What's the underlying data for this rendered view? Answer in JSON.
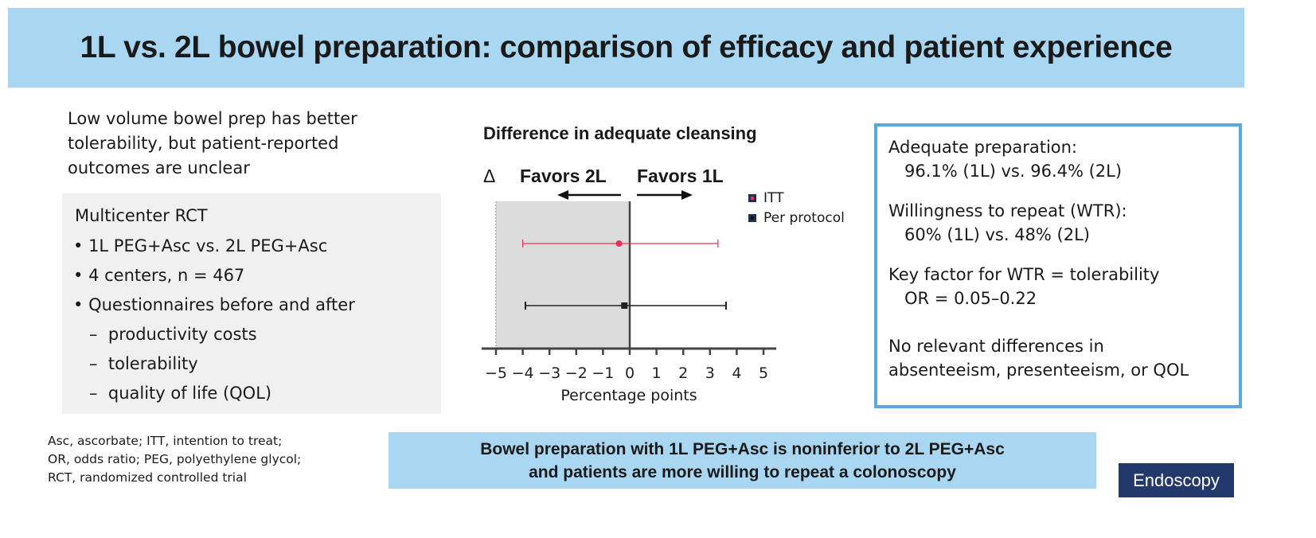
{
  "title": "1L vs. 2L bowel preparation: comparison of efficacy and patient experience",
  "intro": [
    "Low volume bowel prep has better",
    "tolerability, but patient-reported",
    "outcomes are unclear"
  ],
  "study_box": {
    "heading": "Multicenter RCT",
    "bullets": [
      "1L PEG+Asc vs. 2L PEG+Asc",
      "4 centers, n = 467",
      "Questionnaires before and after"
    ],
    "sub_items": [
      "productivity costs",
      "tolerability",
      "quality of life (QOL)"
    ]
  },
  "footnote": [
    "Asc, ascorbate; ITT, intention to treat;",
    "OR, odds ratio; PEG, polyethylene glycol;",
    "RCT, randomized controlled trial"
  ],
  "chart_data": {
    "type": "scatter",
    "subtype": "forest",
    "title": "Difference in adequate cleansing",
    "delta_symbol": "Δ",
    "favors_left": "Favors 2L",
    "favors_right": "Favors 1L",
    "xlabel": "Percentage points",
    "xlim": [
      -5,
      5
    ],
    "xticks": [
      "−5",
      "−4",
      "−3",
      "−2",
      "−1",
      "0",
      "1",
      "2",
      "3",
      "4",
      "5"
    ],
    "noninferiority_margin": -5,
    "series": [
      {
        "name": "ITT",
        "estimate": -0.4,
        "ci_low": -4.0,
        "ci_high": 3.3,
        "color": "#e8305a"
      },
      {
        "name": "Per protocol",
        "estimate": -0.2,
        "ci_low": -3.9,
        "ci_high": 3.6,
        "color": "#222222"
      }
    ]
  },
  "results": {
    "adequate_label": "Adequate preparation:",
    "adequate_value": "96.1% (1L) vs. 96.4% (2L)",
    "wtr_label": "Willingness to repeat (WTR):",
    "wtr_value": "60% (1L) vs. 48% (2L)",
    "key_label": "Key factor for WTR = tolerability",
    "key_value": "OR = 0.05–0.22",
    "nodiff_1": "No relevant differences in",
    "nodiff_2": "absenteeism, presenteeism, or QOL"
  },
  "conclusion": [
    "Bowel preparation with 1L PEG+Asc is noninferior to 2L PEG+Asc",
    "and patients are more willing to repeat a colonoscopy"
  ],
  "logo": "Endoscopy",
  "colors": {
    "banner": "#a9d6f1",
    "box_border": "#5ba8da",
    "logo_bg": "#24396b"
  }
}
